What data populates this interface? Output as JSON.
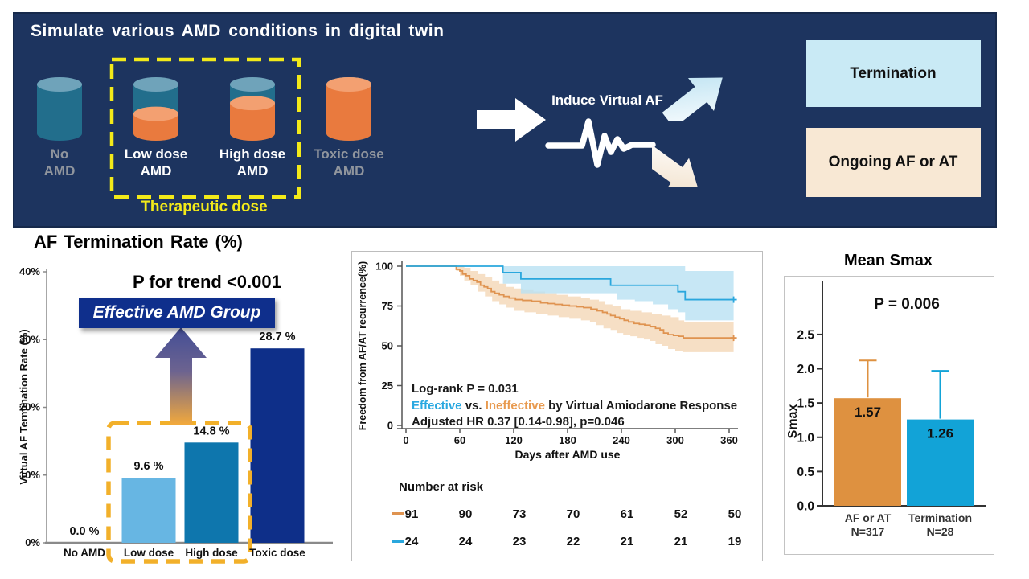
{
  "top_panel": {
    "title": "Simulate various AMD conditions in digital twin",
    "cylinders": [
      {
        "name": "no-amd",
        "line1": "No",
        "line2": "AMD",
        "fill_pct": 0,
        "label_style": "muted"
      },
      {
        "name": "low-dose-amd",
        "line1": "Low dose",
        "line2": "AMD",
        "fill_pct": 40,
        "label_style": "normal"
      },
      {
        "name": "high-dose-amd",
        "line1": "High dose",
        "line2": "AMD",
        "fill_pct": 62,
        "label_style": "normal"
      },
      {
        "name": "toxic-dose-amd",
        "line1": "Toxic dose",
        "line2": "AMD",
        "fill_pct": 100,
        "label_style": "muted"
      }
    ],
    "therapeutic_label": "Therapeutic dose",
    "induce_label": "Induce Virtual AF",
    "outcomes": [
      {
        "label": "Termination",
        "bg": "#c9eaf5"
      },
      {
        "label": "Ongoing AF or AT",
        "bg": "#f8e8d4"
      }
    ],
    "colors": {
      "panel_bg": "#1d345f",
      "cyl_teal": "#226e8c",
      "cyl_teal_top": "#6fa3ba",
      "cyl_orange": "#e97a3e",
      "cyl_orange_top": "#f3a071",
      "dash_yellow": "#f3ea19"
    }
  },
  "chart_data": [
    {
      "id": "af-termination-rate",
      "type": "bar",
      "title": "AF Termination Rate (%)",
      "ylabel": "Virtual AF Termination Rate (%)",
      "categories": [
        "No AMD",
        "Low dose",
        "High dose",
        "Toxic dose"
      ],
      "values": [
        0.0,
        9.6,
        14.8,
        28.7
      ],
      "value_labels": [
        "0.0 %",
        "9.6 %",
        "14.8 %",
        "28.7 %"
      ],
      "bar_colors": [
        "#67b6e3",
        "#67b6e3",
        "#0e76ad",
        "#0e2f89"
      ],
      "ylim": [
        0,
        40
      ],
      "ytick_labels": [
        "0%",
        "10%",
        "20%",
        "30%",
        "40%"
      ],
      "ytick_values": [
        0,
        10,
        20,
        30,
        40
      ],
      "annotation": "P for trend <0.001",
      "badge": "Effective AMD Group",
      "highlight_color": "#f2b02a",
      "arrow_gradient": [
        "#434e96",
        "#f2a93c"
      ]
    },
    {
      "id": "km-recurrence",
      "type": "line",
      "xlabel": "Days after AMD use",
      "ylabel": "Freedom from AF/AT recurrence(%)",
      "xticks": [
        0,
        60,
        120,
        180,
        240,
        300,
        360
      ],
      "yticks": [
        0,
        25,
        50,
        75,
        100
      ],
      "xlim": [
        0,
        365
      ],
      "ylim": [
        0,
        100
      ],
      "series": [
        {
          "name": "Ineffective",
          "color": "#df9350",
          "band_color": "#f6dfc5",
          "steps": [
            [
              0,
              100
            ],
            [
              53,
              100
            ],
            [
              56,
              98
            ],
            [
              60,
              97
            ],
            [
              63,
              95
            ],
            [
              67,
              94
            ],
            [
              71,
              92
            ],
            [
              75,
              91
            ],
            [
              79,
              90
            ],
            [
              83,
              88
            ],
            [
              87,
              87
            ],
            [
              91,
              86
            ],
            [
              95,
              84
            ],
            [
              99,
              83
            ],
            [
              104,
              82
            ],
            [
              109,
              81
            ],
            [
              115,
              80
            ],
            [
              122,
              79
            ],
            [
              130,
              78.5
            ],
            [
              140,
              78
            ],
            [
              150,
              77
            ],
            [
              158,
              76.5
            ],
            [
              166,
              76
            ],
            [
              174,
              75.5
            ],
            [
              182,
              75
            ],
            [
              190,
              74.5
            ],
            [
              198,
              74
            ],
            [
              206,
              73
            ],
            [
              213,
              72
            ],
            [
              219,
              71
            ],
            [
              224,
              70
            ],
            [
              228,
              69
            ],
            [
              233,
              68
            ],
            [
              238,
              67
            ],
            [
              243,
              66
            ],
            [
              248,
              65
            ],
            [
              254,
              64
            ],
            [
              260,
              63.5
            ],
            [
              266,
              63
            ],
            [
              272,
              62
            ],
            [
              278,
              61
            ],
            [
              283,
              60
            ],
            [
              287,
              58
            ],
            [
              292,
              57
            ],
            [
              298,
              56.5
            ],
            [
              304,
              56
            ],
            [
              309,
              55
            ],
            [
              365,
              55
            ]
          ],
          "band_upper": [
            [
              0,
              100
            ],
            [
              58,
              100
            ],
            [
              65,
              99
            ],
            [
              72,
              97
            ],
            [
              80,
              95
            ],
            [
              88,
              93
            ],
            [
              96,
              91
            ],
            [
              104,
              89
            ],
            [
              112,
              87
            ],
            [
              120,
              86
            ],
            [
              130,
              85
            ],
            [
              142,
              84
            ],
            [
              155,
              83
            ],
            [
              168,
              82
            ],
            [
              180,
              81
            ],
            [
              195,
              80
            ],
            [
              205,
              79
            ],
            [
              215,
              78
            ],
            [
              222,
              76
            ],
            [
              230,
              75
            ],
            [
              240,
              73
            ],
            [
              250,
              72
            ],
            [
              262,
              71
            ],
            [
              274,
              70
            ],
            [
              285,
              69
            ],
            [
              295,
              68
            ],
            [
              304,
              66
            ],
            [
              310,
              65
            ],
            [
              365,
              65
            ]
          ],
          "band_lower": [
            [
              0,
              100
            ],
            [
              53,
              100
            ],
            [
              56,
              97
            ],
            [
              60,
              94
            ],
            [
              65,
              91
            ],
            [
              72,
              88
            ],
            [
              80,
              84
            ],
            [
              88,
              81
            ],
            [
              96,
              78
            ],
            [
              104,
              76
            ],
            [
              112,
              74
            ],
            [
              120,
              72
            ],
            [
              132,
              71
            ],
            [
              145,
              70
            ],
            [
              158,
              69
            ],
            [
              170,
              68
            ],
            [
              182,
              67
            ],
            [
              195,
              66
            ],
            [
              205,
              65
            ],
            [
              212,
              63
            ],
            [
              220,
              61
            ],
            [
              228,
              60
            ],
            [
              235,
              58
            ],
            [
              242,
              57
            ],
            [
              250,
              56
            ],
            [
              258,
              55
            ],
            [
              265,
              54
            ],
            [
              272,
              53
            ],
            [
              278,
              51
            ],
            [
              285,
              50
            ],
            [
              292,
              48
            ],
            [
              300,
              47
            ],
            [
              308,
              46
            ],
            [
              365,
              46
            ]
          ]
        },
        {
          "name": "Effective",
          "color": "#2aa7dd",
          "band_color": "#b9e1f2",
          "steps": [
            [
              0,
              100
            ],
            [
              108,
              100
            ],
            [
              108,
              96
            ],
            [
              128,
              96
            ],
            [
              128,
              92
            ],
            [
              228,
              92
            ],
            [
              228,
              88
            ],
            [
              303,
              88
            ],
            [
              303,
              84
            ],
            [
              311,
              84
            ],
            [
              311,
              79
            ],
            [
              365,
              79
            ]
          ],
          "band_upper": [
            [
              0,
              100
            ],
            [
              230,
              100
            ],
            [
              303,
              100
            ],
            [
              311,
              97
            ],
            [
              365,
              97
            ]
          ],
          "band_lower": [
            [
              0,
              100
            ],
            [
              108,
              100
            ],
            [
              108,
              89
            ],
            [
              128,
              83
            ],
            [
              230,
              83
            ],
            [
              235,
              79
            ],
            [
              255,
              78
            ],
            [
              275,
              76
            ],
            [
              292,
              73
            ],
            [
              303,
              71
            ],
            [
              311,
              66
            ],
            [
              365,
              65
            ]
          ]
        }
      ],
      "annotations": {
        "line1": "Log-rank P = 0.031",
        "line2_effective": "Effective",
        "line2_vs": " vs. ",
        "line2_ineffective": "Ineffective",
        "line2_rest": " by Virtual Amiodarone Response",
        "line3": "Adjusted HR 0.37 [0.14-0.98], p=0.046"
      },
      "number_at_risk": {
        "label": "Number at risk",
        "rows": [
          {
            "series": "Ineffective",
            "color": "#df9350",
            "counts": [
              91,
              90,
              73,
              70,
              61,
              52,
              50
            ]
          },
          {
            "series": "Effective",
            "color": "#2aa7dd",
            "counts": [
              24,
              24,
              23,
              22,
              21,
              21,
              19
            ]
          }
        ]
      }
    },
    {
      "id": "mean-smax",
      "type": "bar",
      "title": "Mean Smax",
      "ylabel": "Smax",
      "categories": [
        "AF or AT",
        "Termination"
      ],
      "sublabels": [
        "N=317",
        "N=28"
      ],
      "values": [
        1.57,
        1.26
      ],
      "error_upper": [
        2.12,
        1.97
      ],
      "value_labels": [
        "1.57",
        "1.26"
      ],
      "bar_colors": [
        "#de9140",
        "#12a3d7"
      ],
      "ylim": [
        0,
        3.25
      ],
      "yticks": [
        0.0,
        0.5,
        1.0,
        1.5,
        2.0,
        2.5
      ],
      "annotation": "P = 0.006"
    }
  ]
}
